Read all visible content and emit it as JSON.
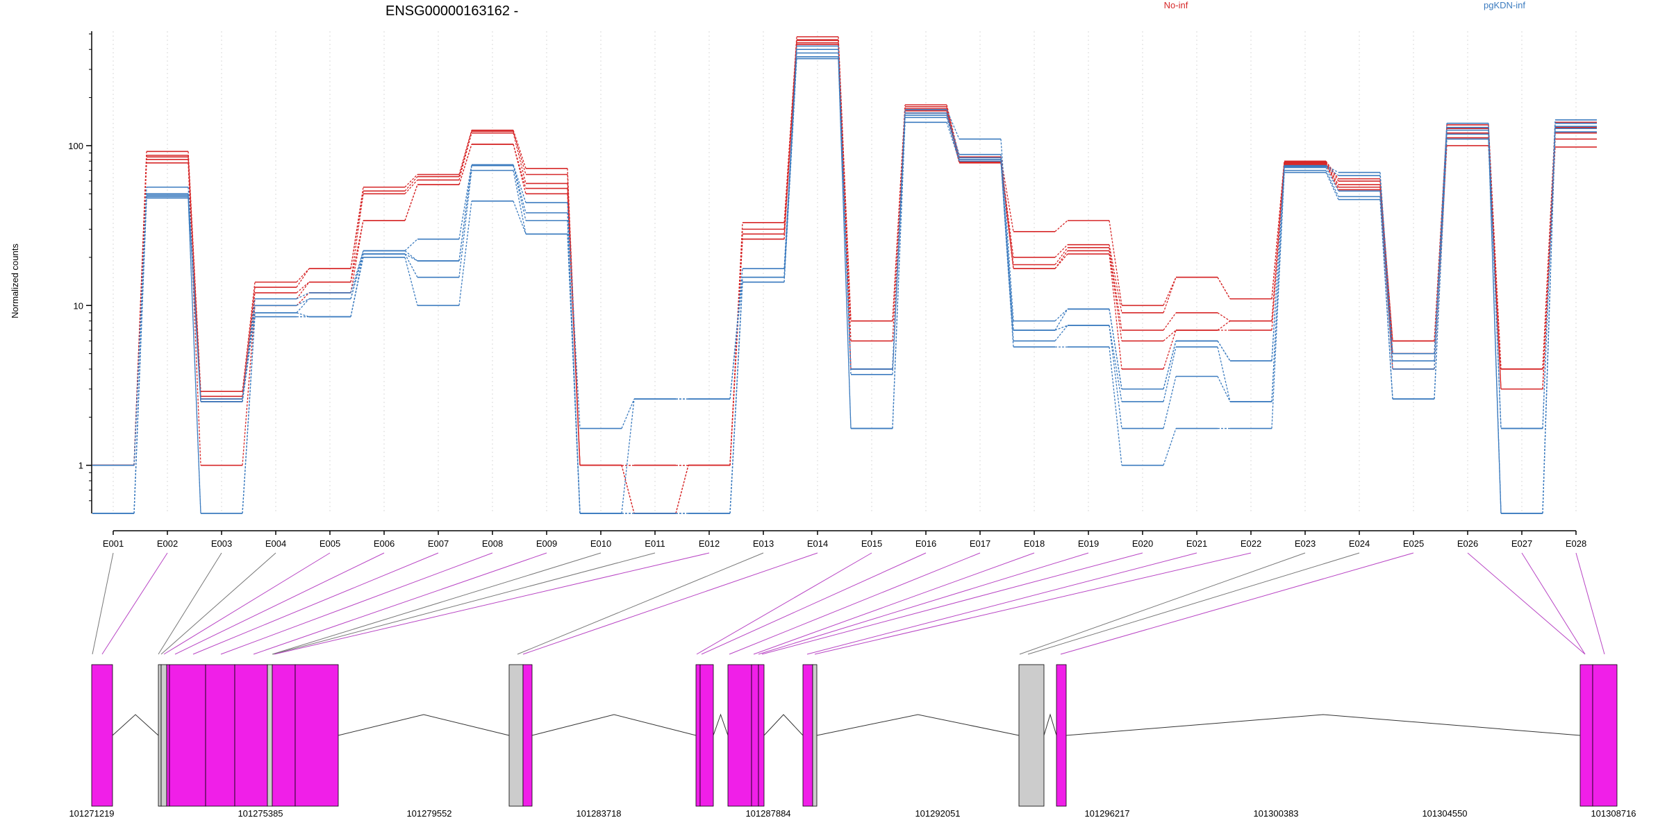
{
  "chart_data": {
    "type": "line",
    "title": "ENSG00000163162 -",
    "ylabel": "Normalized counts",
    "xlabel": "",
    "y_scale": "log",
    "ylim": [
      0.5,
      500
    ],
    "y_ticks": [
      1,
      10,
      100
    ],
    "grid": "vertical dotted lines at each exon",
    "legend": [
      {
        "label": "No-inf",
        "color": "#d62728"
      },
      {
        "label": "pgKDN-inf",
        "color": "#3b7bbf"
      }
    ],
    "categories": [
      "E001",
      "E002",
      "E003",
      "E004",
      "E005",
      "E006",
      "E007",
      "E008",
      "E009",
      "E010",
      "E011",
      "E012",
      "E013",
      "E014",
      "E015",
      "E016",
      "E017",
      "E018",
      "E019",
      "E020",
      "E021",
      "E022",
      "E023",
      "E024",
      "E025",
      "E026",
      "E027",
      "E028"
    ],
    "series": [
      {
        "group": "No-inf",
        "values": [
          1.0,
          92,
          2.9,
          14,
          17,
          55,
          66,
          125,
          72,
          1.0,
          1.0,
          1.0,
          33,
          480,
          8,
          180,
          85,
          29,
          34,
          10,
          15,
          11,
          80,
          62,
          6,
          135,
          4,
          140
        ]
      },
      {
        "group": "No-inf",
        "values": [
          1.0,
          87,
          2.7,
          13,
          17,
          52,
          64,
          123,
          66,
          1.0,
          0.5,
          1.0,
          30,
          460,
          8,
          175,
          82,
          20,
          24,
          9,
          15,
          11,
          79,
          60,
          6,
          128,
          4,
          130
        ]
      },
      {
        "group": "No-inf",
        "values": [
          1.0,
          85,
          2.6,
          12,
          14,
          50,
          61,
          120,
          58,
          1.0,
          0.5,
          1.0,
          28,
          455,
          6,
          170,
          80,
          18,
          23,
          7,
          9,
          8,
          78,
          57,
          5,
          120,
          3,
          120
        ]
      },
      {
        "group": "No-inf",
        "values": [
          1.0,
          82,
          2.5,
          11,
          14,
          34,
          57,
          102,
          54,
          1.0,
          1.0,
          1.0,
          26,
          440,
          4,
          165,
          79,
          17,
          22,
          6,
          7,
          8,
          77,
          55,
          5,
          112,
          3,
          110
        ]
      },
      {
        "group": "No-inf",
        "values": [
          1.0,
          78,
          1.0,
          10,
          12,
          34,
          57,
          102,
          50,
          1.0,
          1.0,
          1.0,
          26,
          430,
          4,
          160,
          78,
          17,
          21,
          4,
          7,
          7,
          76,
          53,
          4,
          100,
          3,
          98
        ]
      },
      {
        "group": "pgKDN-inf",
        "values": [
          1.0,
          55,
          2.6,
          11,
          12,
          22,
          26,
          76,
          44,
          1.7,
          2.6,
          2.6,
          17,
          420,
          4,
          168,
          110,
          8,
          9.5,
          3,
          6,
          4.5,
          75,
          68,
          5,
          138,
          1.7,
          145
        ]
      },
      {
        "group": "pgKDN-inf",
        "values": [
          1.0,
          50,
          2.5,
          10,
          11,
          22,
          19,
          75,
          38,
          0.5,
          2.6,
          2.6,
          15,
          400,
          4,
          160,
          88,
          7,
          9.5,
          3,
          6,
          4.5,
          74,
          65,
          4.5,
          130,
          1.7,
          138
        ]
      },
      {
        "group": "pgKDN-inf",
        "values": [
          0.5,
          49,
          2.5,
          9,
          11,
          21,
          19,
          75,
          34,
          0.5,
          0.5,
          0.5,
          15,
          380,
          3.7,
          155,
          84,
          7,
          7.5,
          2.5,
          5.5,
          2.5,
          73,
          52,
          4,
          125,
          0.5,
          132
        ]
      },
      {
        "group": "pgKDN-inf",
        "values": [
          0.5,
          48,
          0.5,
          9,
          8.5,
          21,
          15,
          70,
          28,
          0.5,
          0.5,
          0.5,
          14,
          360,
          1.7,
          150,
          82,
          6,
          7.5,
          1.7,
          3.6,
          2.5,
          70,
          48,
          2.6,
          118,
          0.5,
          128
        ]
      },
      {
        "group": "pgKDN-inf",
        "values": [
          0.5,
          47,
          0.5,
          8.5,
          8.5,
          20,
          10,
          45,
          28,
          0.5,
          0.5,
          0.5,
          14,
          350,
          1.7,
          140,
          80,
          5.5,
          5.5,
          1.0,
          1.7,
          1.7,
          68,
          46,
          2.6,
          110,
          0.5,
          122
        ]
      }
    ],
    "gene_model": {
      "coordinate_labels": [
        "101271219",
        "101275385",
        "101279552",
        "101283718",
        "101287884",
        "101292051",
        "101296217",
        "101300383",
        "101304550",
        "101308716"
      ],
      "exon_fill": "#f01fe8",
      "nonexpressed_fill": "#cccccc"
    }
  }
}
